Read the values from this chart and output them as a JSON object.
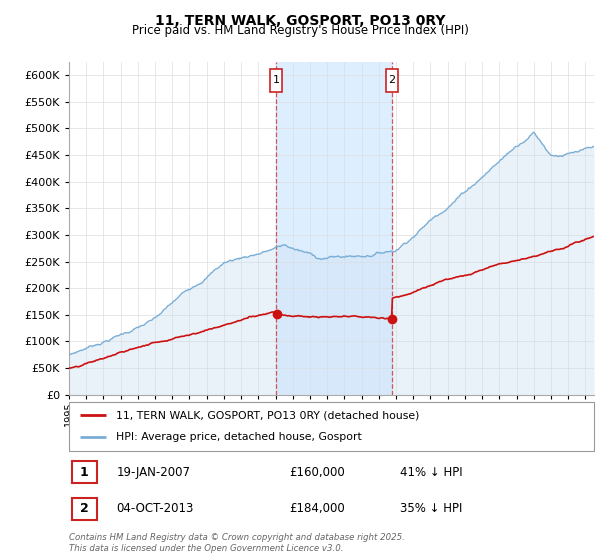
{
  "title": "11, TERN WALK, GOSPORT, PO13 0RY",
  "subtitle": "Price paid vs. HM Land Registry's House Price Index (HPI)",
  "ylim": [
    0,
    625000
  ],
  "yticks": [
    0,
    50000,
    100000,
    150000,
    200000,
    250000,
    300000,
    350000,
    400000,
    450000,
    500000,
    550000,
    600000
  ],
  "hpi_color": "#7aaed6",
  "hpi_fill_color": "#cce0f0",
  "price_color": "#cc1111",
  "shade_color": "#ddeeff",
  "sale1_date": "19-JAN-2007",
  "sale1_price": 160000,
  "sale1_label": "41% ↓ HPI",
  "sale1_year": 2007.05,
  "sale2_date": "04-OCT-2013",
  "sale2_price": 184000,
  "sale2_label": "35% ↓ HPI",
  "sale2_year": 2013.75,
  "legend_label_price": "11, TERN WALK, GOSPORT, PO13 0RY (detached house)",
  "legend_label_hpi": "HPI: Average price, detached house, Gosport",
  "footnote": "Contains HM Land Registry data © Crown copyright and database right 2025.\nThis data is licensed under the Open Government Licence v3.0.",
  "xmin": 1995,
  "xmax": 2025.5
}
